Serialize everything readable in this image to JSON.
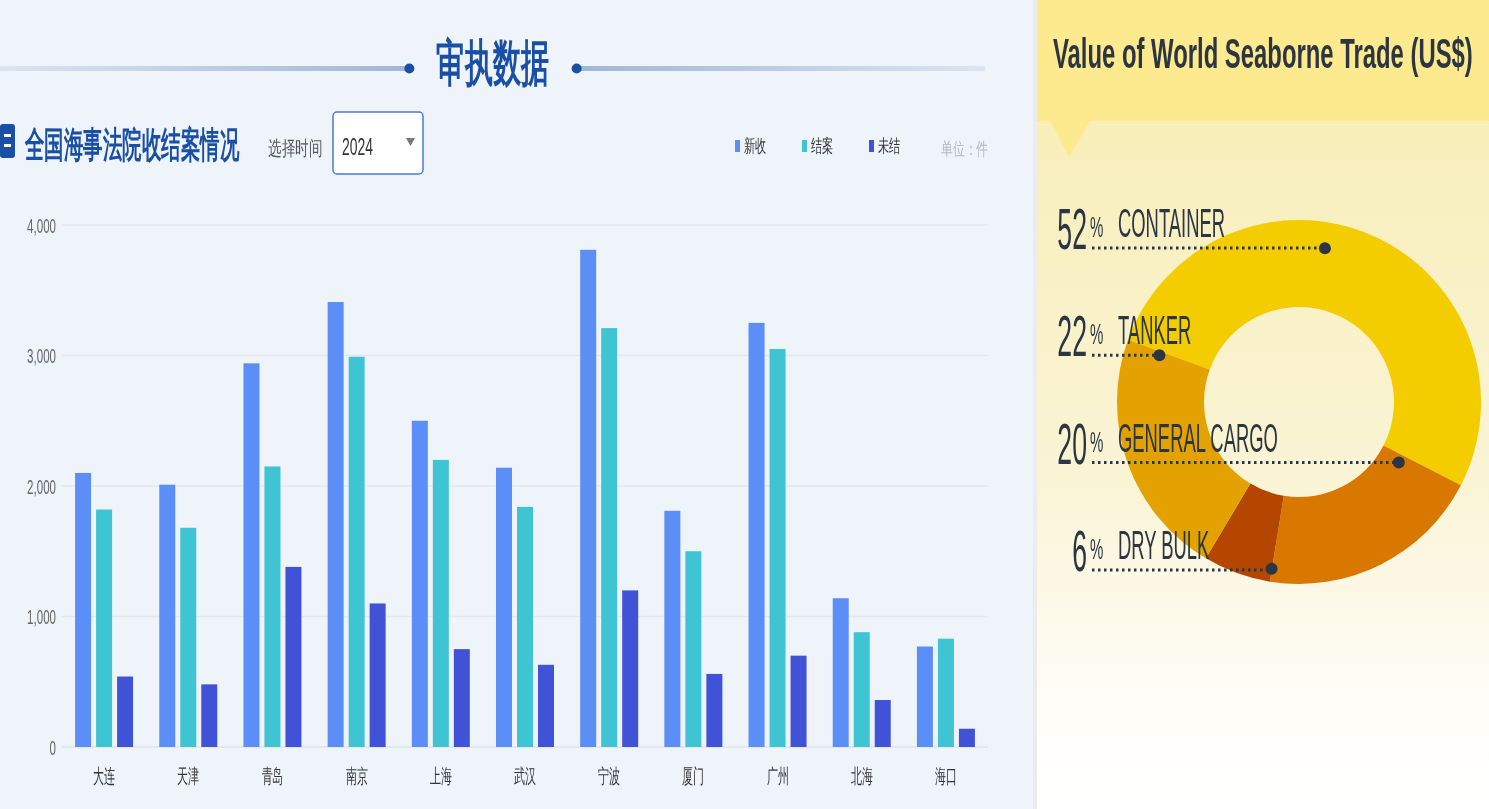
{
  "chart_data": [
    {
      "type": "bar",
      "title": "审执数据",
      "subtitle": "全国海事法院收结案情况",
      "annotations": [
        "选择时间",
        "2024",
        "单位：件"
      ],
      "categories": [
        "大连",
        "天津",
        "青岛",
        "南京",
        "上海",
        "武汉",
        "宁波",
        "厦门",
        "广州",
        "北海",
        "海口"
      ],
      "series": [
        {
          "name": "新收",
          "color": "#5b8ef6",
          "values": [
            2100,
            2010,
            2940,
            3410,
            2500,
            2140,
            3810,
            1810,
            3250,
            1140,
            770
          ]
        },
        {
          "name": "结案",
          "color": "#3fc4d4",
          "values": [
            1820,
            1680,
            2150,
            2990,
            2200,
            1840,
            3210,
            1500,
            3050,
            880,
            830
          ]
        },
        {
          "name": "未结",
          "color": "#4052d6",
          "values": [
            540,
            480,
            1380,
            1100,
            750,
            630,
            1200,
            560,
            700,
            360,
            140
          ]
        }
      ],
      "ylim": [
        0,
        4000
      ],
      "yticks": [
        0,
        {
          "value": 1000,
          "label": "1,000"
        },
        {
          "value": 2000,
          "label": "2,000"
        },
        {
          "value": 3000,
          "label": "3,000"
        },
        {
          "value": 4000,
          "label": "4,000"
        }
      ],
      "grid": "y",
      "legend": "top right"
    },
    {
      "type": "donut",
      "title": "Value of World Seaborne Trade (US$)",
      "categories": [
        "CONTAINER",
        "GENERAL CARGO",
        "DRY BULK",
        "TANKER"
      ],
      "values": [
        52,
        20,
        6,
        22
      ],
      "colors": [
        "#f4cd00",
        "#d97800",
        "#b44600",
        "#e3a200"
      ],
      "value_labels": [
        "52%",
        "20%",
        "6%",
        "22%"
      ]
    }
  ]
}
